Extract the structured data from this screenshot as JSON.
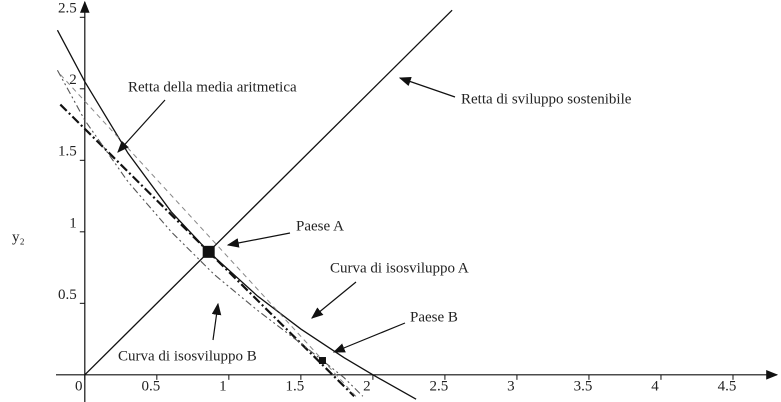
{
  "chart_data": {
    "type": "line",
    "ylabel": "y₂",
    "xlim": [
      -0.2,
      4.75
    ],
    "ylim": [
      -0.19,
      2.6
    ],
    "xticks": [
      0,
      0.5,
      1,
      1.5,
      2,
      2.5,
      3,
      3.5,
      4,
      4.5
    ],
    "yticks": [
      0.5,
      1,
      1.5,
      2,
      2.5
    ],
    "series": [
      {
        "name": "Retta di sviluppo sostenibile",
        "color": "#111",
        "style": "solid",
        "x": [
          0,
          2.55
        ],
        "values": [
          0,
          2.55
        ]
      },
      {
        "name": "Curva di isosviluppo A",
        "color": "#111",
        "style": "solid",
        "x": [
          -0.19,
          0,
          0.3,
          0.6,
          0.86,
          1.2,
          1.5,
          1.8,
          2.0,
          2.3
        ],
        "values": [
          2.41,
          2.05,
          1.55,
          1.14,
          0.86,
          0.55,
          0.32,
          0.12,
          0,
          -0.17
        ]
      },
      {
        "name": "Retta della media aritmetica",
        "color": "#111",
        "style": "dashdot",
        "x": [
          -0.17,
          1.87
        ],
        "values": [
          1.89,
          -0.15
        ]
      },
      {
        "name": "Curva di isosviluppo B",
        "color": "#555",
        "style": "dashdotdot",
        "x": [
          -0.19,
          0,
          0.3,
          0.6,
          0.9,
          1.2,
          1.5,
          1.65,
          1.8,
          1.93
        ],
        "values": [
          2.13,
          1.78,
          1.35,
          1.0,
          0.7,
          0.45,
          0.22,
          0.1,
          -0.02,
          -0.15
        ]
      },
      {
        "color": "#888",
        "style": "dashed",
        "x": [
          -0.17,
          1.9
        ],
        "values": [
          2.1,
          -0.17
        ]
      }
    ],
    "points": [
      {
        "name": "Paese A",
        "x": 0.86,
        "y": 0.86
      },
      {
        "name": "Paese B",
        "x": 1.65,
        "y": 0.1
      }
    ],
    "annotations": [
      "Retta della media aritmetica",
      "Retta di sviluppo sostenibile",
      "Paese A",
      "Curva di isosviluppo A",
      "Paese B",
      "Curva di isosviluppo B"
    ]
  }
}
